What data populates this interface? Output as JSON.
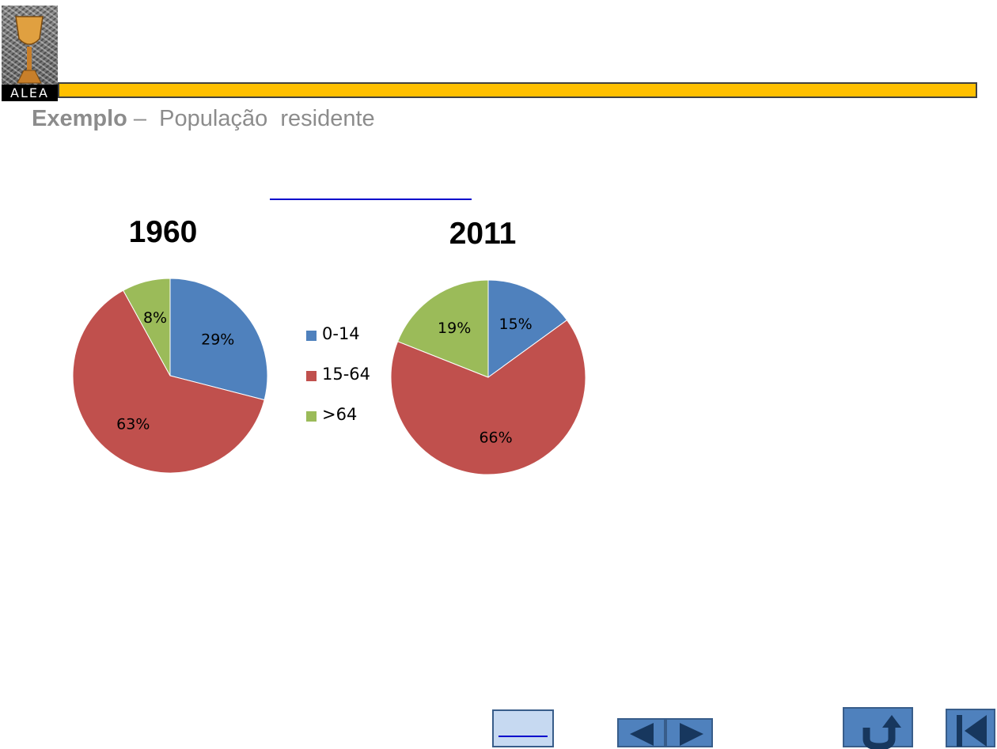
{
  "logo": {
    "text": "ALEA"
  },
  "header": {
    "title_bold": "Exemplo",
    "title_rest": " –  População  residente",
    "bar_color": "#ffc000"
  },
  "legend": [
    {
      "label": "0-14",
      "color": "#4f81bd"
    },
    {
      "label": "15-64",
      "color": "#c0504d"
    },
    {
      "label": ">64",
      "color": "#9bbb59"
    }
  ],
  "chart_data": [
    {
      "type": "pie",
      "title": "1960",
      "categories": [
        "0-14",
        "15-64",
        ">64"
      ],
      "values": [
        29,
        63,
        8
      ],
      "labels": [
        "29%",
        "63%",
        "8%"
      ],
      "colors": [
        "#4f81bd",
        "#c0504d",
        "#9bbb59"
      ]
    },
    {
      "type": "pie",
      "title": "2011",
      "categories": [
        "0-14",
        "15-64",
        ">64"
      ],
      "values": [
        15,
        66,
        19
      ],
      "labels": [
        "15%",
        "66%",
        "19%"
      ],
      "colors": [
        "#4f81bd",
        "#c0504d",
        "#9bbb59"
      ]
    }
  ],
  "nav": {
    "icons": [
      "back-page-icon",
      "previous-arrow-icon",
      "next-arrow-icon",
      "return-arrow-icon",
      "first-page-icon"
    ],
    "color": "#4f81bd"
  }
}
